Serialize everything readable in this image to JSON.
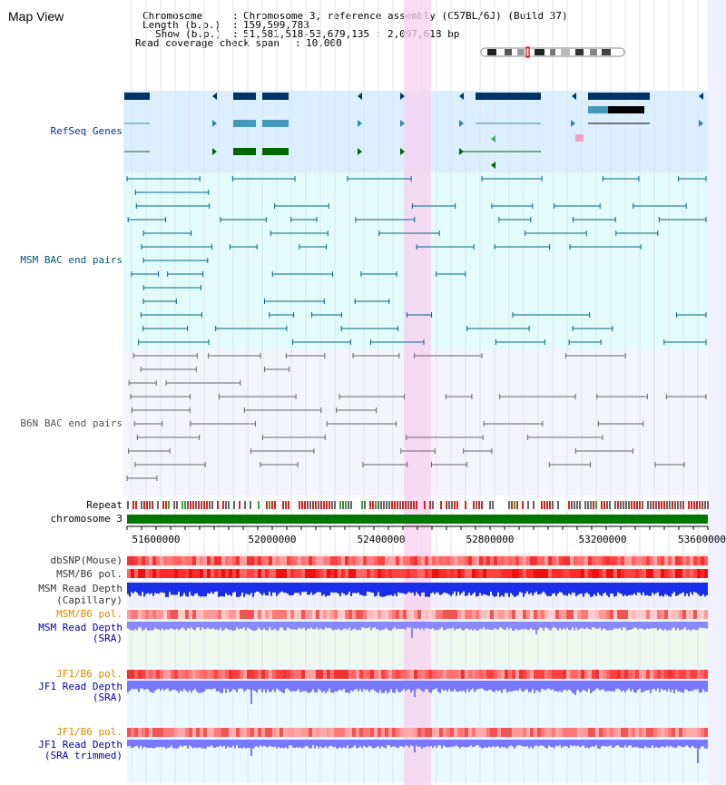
{
  "page_title": "Map View",
  "info": {
    "chromosome_key": "Chromosome",
    "chromosome_val": "Chromosome 3, reference assembly (C57BL/6J) (Build 37)",
    "length_key": "Length (b.p.)",
    "length_val": "159,599,783",
    "show_key": "Show (b.p.)",
    "show_val": "51,581,518-53,679,135 : 2,097,618 bp",
    "coverage_key": "Read coverage check span",
    "coverage_val": "10,000"
  },
  "tracks": {
    "refseq": "RefSeq Genes",
    "msm_bac": "MSM BAC end pairs",
    "b6n_bac": "B6N BAC end pairs",
    "repeat": "Repeat",
    "chromosome": "chromosome 3",
    "dbsnp": "dbSNP(Mouse)",
    "msm_b6_pol_1": "MSM/B6 pol.",
    "msm_depth_cap_1": "MSM Read Depth",
    "msm_depth_cap_2": "(Capillary)",
    "msm_b6_pol_2": "MSM/B6 pol.",
    "msm_depth_sra_1": "MSM Read Depth",
    "msm_depth_sra_2": "(SRA)",
    "jf1_b6_pol_1": "JF1/B6 pol.",
    "jf1_depth_sra_1": "JF1 Read Depth",
    "jf1_depth_sra_2": "(SRA)",
    "jf1_b6_pol_2": "JF1/B6 pol.",
    "jf1_depth_trim_1": "JF1 Read Depth",
    "jf1_depth_trim_2": "(SRA trimmed)"
  },
  "axis": {
    "ticks": [
      "51600000",
      "52000000",
      "52400000",
      "52800000",
      "53200000",
      "53600000"
    ]
  },
  "colors": {
    "refseq_bg": "#dcefff",
    "msm_bg": "#e4fbfb",
    "b6n_bg": "#f4f4fb",
    "highlight": "#f8d8f4",
    "chromosome": "#007700",
    "msm_pol_label": "#e08800",
    "depth_label": "#0000aa",
    "track_label": "#003399"
  }
}
